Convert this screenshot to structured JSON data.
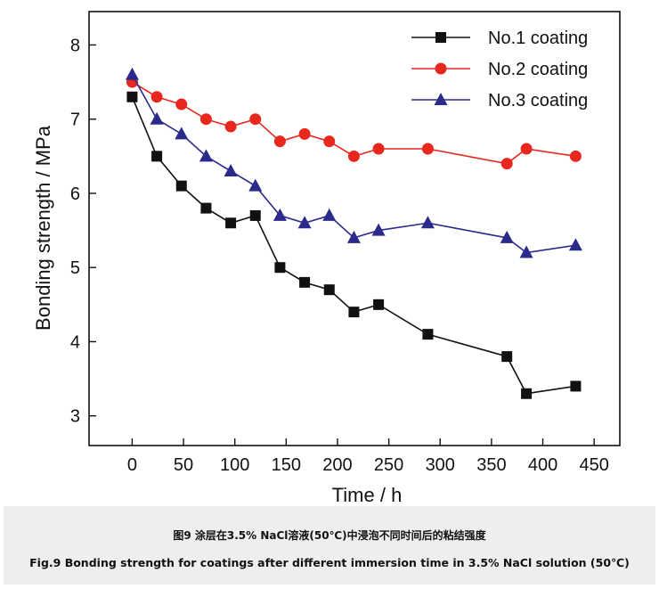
{
  "chart_data": {
    "type": "line",
    "title": "",
    "xlabel": "Time / h",
    "ylabel": "Bonding strength / MPa",
    "xlim": [
      -42,
      475
    ],
    "ylim": [
      2.6,
      8.45
    ],
    "xticks": [
      0,
      50,
      100,
      150,
      200,
      250,
      300,
      350,
      400,
      450
    ],
    "yticks": [
      3,
      4,
      5,
      6,
      7,
      8
    ],
    "x": [
      0,
      24,
      48,
      72,
      96,
      120,
      144,
      168,
      192,
      216,
      240,
      288,
      365,
      384,
      432
    ],
    "legend_position": "top-right",
    "series": [
      {
        "name": "No.1 coating",
        "color": "#111111",
        "marker": "square",
        "values": [
          7.3,
          6.5,
          6.1,
          5.8,
          5.6,
          5.7,
          5.0,
          4.8,
          4.7,
          4.4,
          4.5,
          4.1,
          3.8,
          3.3,
          3.4
        ]
      },
      {
        "name": "No.2 coating",
        "color": "#e8271f",
        "marker": "circle",
        "values": [
          7.5,
          7.3,
          7.2,
          7.0,
          6.9,
          7.0,
          6.7,
          6.8,
          6.7,
          6.5,
          6.6,
          6.6,
          6.4,
          6.6,
          6.5
        ]
      },
      {
        "name": "No.3 coating",
        "color": "#2a2a8a",
        "marker": "triangle",
        "values": [
          7.6,
          7.0,
          6.8,
          6.5,
          6.3,
          6.1,
          5.7,
          5.6,
          5.7,
          5.4,
          5.5,
          5.6,
          5.4,
          5.2,
          5.3
        ]
      }
    ]
  },
  "caption": {
    "cn": "图9   涂层在3.5% NaCl溶液(50℃)中浸泡不同时间后的粘结强度",
    "en": "Fig.9   Bonding strength for coatings after different immersion time in 3.5% NaCl solution (50℃)"
  }
}
